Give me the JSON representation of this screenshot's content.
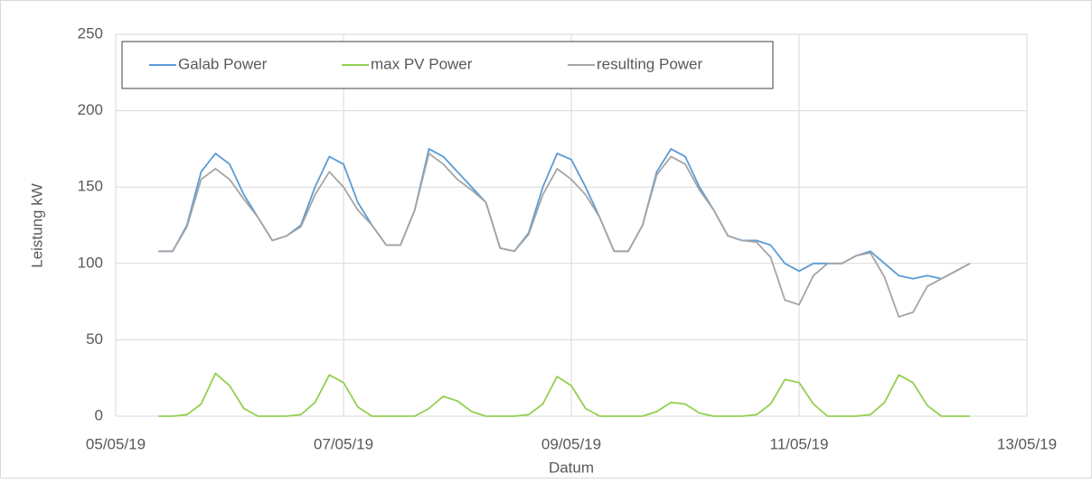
{
  "chart_data": {
    "type": "line",
    "xlabel": "Datum",
    "ylabel": "Leistung kW",
    "x": [
      "2019-05-05T09:00",
      "2019-05-05T12:00",
      "2019-05-05T15:00",
      "2019-05-05T18:00",
      "2019-05-05T21:00",
      "2019-05-06T00:00",
      "2019-05-06T03:00",
      "2019-05-06T06:00",
      "2019-05-06T09:00",
      "2019-05-06T12:00",
      "2019-05-06T15:00",
      "2019-05-06T18:00",
      "2019-05-06T21:00",
      "2019-05-07T00:00",
      "2019-05-07T03:00",
      "2019-05-07T06:00",
      "2019-05-07T09:00",
      "2019-05-07T12:00",
      "2019-05-07T15:00",
      "2019-05-07T18:00",
      "2019-05-07T21:00",
      "2019-05-08T00:00",
      "2019-05-08T03:00",
      "2019-05-08T06:00",
      "2019-05-08T09:00",
      "2019-05-08T12:00",
      "2019-05-08T15:00",
      "2019-05-08T18:00",
      "2019-05-08T21:00",
      "2019-05-09T00:00",
      "2019-05-09T03:00",
      "2019-05-09T06:00",
      "2019-05-09T09:00",
      "2019-05-09T12:00",
      "2019-05-09T15:00",
      "2019-05-09T18:00",
      "2019-05-09T21:00",
      "2019-05-10T00:00",
      "2019-05-10T03:00",
      "2019-05-10T06:00",
      "2019-05-10T09:00",
      "2019-05-10T12:00",
      "2019-05-10T15:00",
      "2019-05-10T18:00",
      "2019-05-10T21:00",
      "2019-05-11T00:00",
      "2019-05-11T03:00",
      "2019-05-11T06:00",
      "2019-05-11T09:00",
      "2019-05-11T12:00",
      "2019-05-11T15:00",
      "2019-05-11T18:00",
      "2019-05-11T21:00",
      "2019-05-12T00:00",
      "2019-05-12T03:00",
      "2019-05-12T06:00",
      "2019-05-12T09:00",
      "2019-05-12T12:00"
    ],
    "series": [
      {
        "name": "Galab Power",
        "color": "#5b9bd5",
        "values": [
          108,
          108,
          125,
          160,
          172,
          165,
          145,
          130,
          115,
          118,
          125,
          150,
          170,
          165,
          140,
          125,
          112,
          112,
          135,
          175,
          170,
          160,
          150,
          140,
          110,
          108,
          120,
          150,
          172,
          168,
          150,
          130,
          108,
          108,
          125,
          160,
          175,
          170,
          150,
          135,
          118,
          115,
          115,
          112,
          100,
          95,
          100,
          100,
          100,
          105,
          108,
          100,
          92,
          90,
          92,
          90,
          95,
          100
        ]
      },
      {
        "name": "max PV Power",
        "color": "#92d050",
        "values": [
          0,
          0,
          1,
          8,
          28,
          20,
          5,
          0,
          0,
          0,
          1,
          9,
          27,
          22,
          6,
          0,
          0,
          0,
          0,
          5,
          13,
          10,
          3,
          0,
          0,
          0,
          1,
          8,
          26,
          20,
          5,
          0,
          0,
          0,
          0,
          3,
          9,
          8,
          2,
          0,
          0,
          0,
          1,
          8,
          24,
          22,
          8,
          0,
          0,
          0,
          1,
          9,
          27,
          22,
          7,
          0,
          0,
          0
        ]
      },
      {
        "name": "resulting Power",
        "color": "#a5a5a5",
        "values": [
          108,
          108,
          124,
          155,
          162,
          155,
          142,
          130,
          115,
          118,
          124,
          145,
          160,
          150,
          135,
          125,
          112,
          112,
          135,
          172,
          165,
          155,
          148,
          140,
          110,
          108,
          119,
          145,
          162,
          155,
          145,
          130,
          108,
          108,
          125,
          158,
          170,
          165,
          148,
          135,
          118,
          115,
          114,
          104,
          76,
          73,
          92,
          100,
          100,
          105,
          107,
          91,
          65,
          68,
          85,
          90,
          95,
          100
        ]
      }
    ],
    "xlim": [
      "2019-05-05T00:00",
      "2019-05-13T00:00"
    ],
    "xticks": [
      {
        "value": "2019-05-05T00:00",
        "label": "05/05/19"
      },
      {
        "value": "2019-05-07T00:00",
        "label": "07/05/19"
      },
      {
        "value": "2019-05-09T00:00",
        "label": "09/05/19"
      },
      {
        "value": "2019-05-11T00:00",
        "label": "11/05/19"
      },
      {
        "value": "2019-05-13T00:00",
        "label": "13/05/19"
      }
    ],
    "ylim": [
      0,
      250
    ],
    "yticks": [
      0,
      50,
      100,
      150,
      200,
      250
    ],
    "grid": true,
    "legend": "top"
  }
}
